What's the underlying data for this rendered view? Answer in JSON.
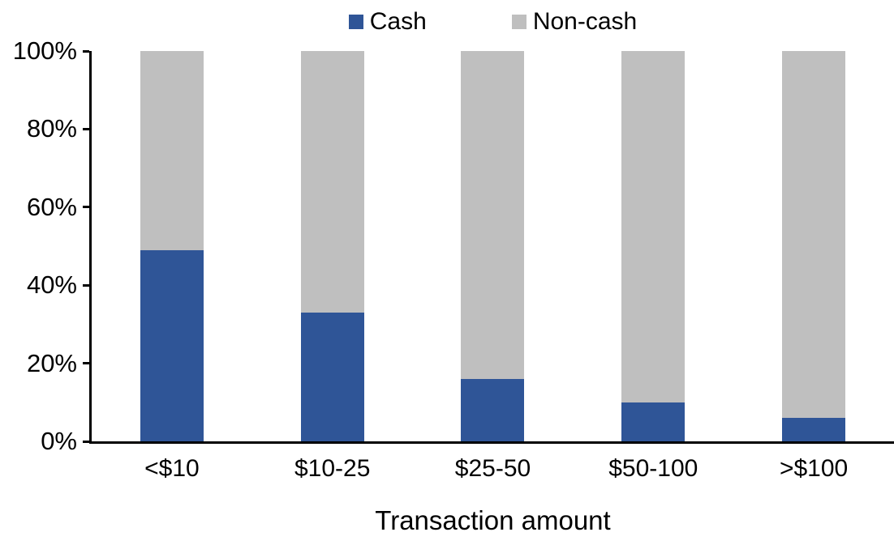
{
  "chart_data": {
    "type": "bar",
    "stacking": "100%",
    "title": "",
    "xlabel": "Transaction amount",
    "ylabel": "",
    "categories": [
      "<$10",
      "$10-25",
      "$25-50",
      "$50-100",
      ">$100"
    ],
    "series": [
      {
        "name": "Cash",
        "color": "#2F5597",
        "values": [
          49,
          33,
          16,
          10,
          6
        ]
      },
      {
        "name": "Non-cash",
        "color": "#BFBFBF",
        "values": [
          51,
          67,
          84,
          90,
          94
        ]
      }
    ],
    "ylim": [
      0,
      100
    ],
    "yticks": [
      "0%",
      "20%",
      "40%",
      "60%",
      "80%",
      "100%"
    ],
    "legend_position": "top-center",
    "grid": false
  },
  "colors": {
    "cash": "#2F5597",
    "non_cash": "#BFBFBF",
    "axis": "#000000",
    "text": "#000000",
    "background": "#FFFFFF"
  }
}
